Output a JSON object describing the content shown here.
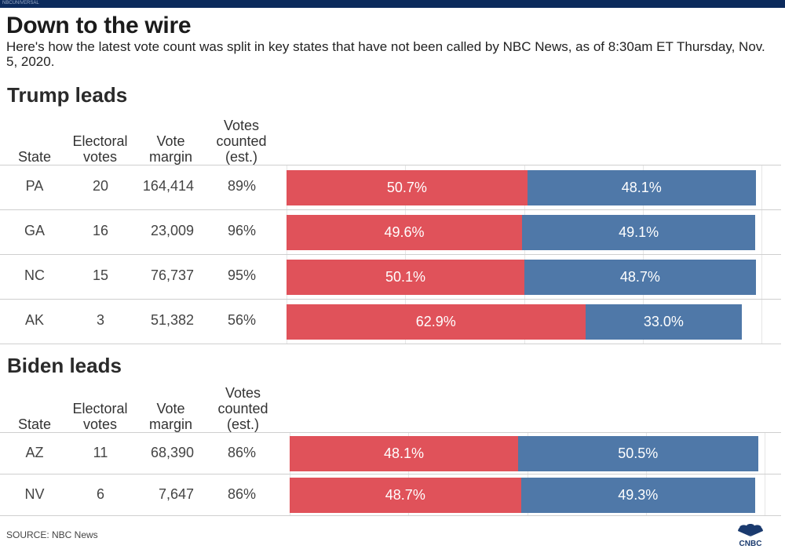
{
  "header": {
    "badge": "NBCUNIVERSAL",
    "title": "Down to the wire",
    "subtitle": "Here's how the latest vote count was split in key states that have not been called by NBC News, as of 8:30am ET Thursday, Nov. 5, 2020."
  },
  "columns": {
    "state": "State",
    "electoral_1": "Electoral",
    "electoral_2": "votes",
    "margin_1": "Vote",
    "margin_2": "margin",
    "counted_1": "Votes",
    "counted_2": "counted",
    "counted_3": "(est.)"
  },
  "colors": {
    "trump": "#e0525a",
    "biden": "#4f78a8"
  },
  "chart_data": [
    {
      "type": "bar",
      "orientation": "horizontal",
      "stacked": true,
      "title": "Trump leads",
      "xlim": [
        0,
        100
      ],
      "categories": [
        "PA",
        "GA",
        "NC",
        "AK"
      ],
      "series": [
        {
          "name": "Trump",
          "values": [
            50.7,
            49.6,
            50.1,
            62.9
          ],
          "labels": [
            "50.7%",
            "49.6%",
            "50.1%",
            "62.9%"
          ]
        },
        {
          "name": "Biden",
          "values": [
            48.1,
            49.1,
            48.7,
            33.0
          ],
          "labels": [
            "48.1%",
            "49.1%",
            "48.7%",
            "33.0%"
          ]
        }
      ],
      "rows": [
        {
          "state": "PA",
          "electoral_votes": "20",
          "vote_margin": "164,414",
          "votes_counted": "89%"
        },
        {
          "state": "GA",
          "electoral_votes": "16",
          "vote_margin": "23,009",
          "votes_counted": "96%"
        },
        {
          "state": "NC",
          "electoral_votes": "15",
          "vote_margin": "76,737",
          "votes_counted": "95%"
        },
        {
          "state": "AK",
          "electoral_votes": "3",
          "vote_margin": "51,382",
          "votes_counted": "56%"
        }
      ]
    },
    {
      "type": "bar",
      "orientation": "horizontal",
      "stacked": true,
      "title": "Biden leads",
      "xlim": [
        0,
        100
      ],
      "categories": [
        "AZ",
        "NV"
      ],
      "series": [
        {
          "name": "Trump",
          "values": [
            48.1,
            48.7
          ],
          "labels": [
            "48.1%",
            "48.7%"
          ]
        },
        {
          "name": "Biden",
          "values": [
            50.5,
            49.3
          ],
          "labels": [
            "50.5%",
            "49.3%"
          ]
        }
      ],
      "rows": [
        {
          "state": "AZ",
          "electoral_votes": "11",
          "vote_margin": "68,390",
          "votes_counted": "86%"
        },
        {
          "state": "NV",
          "electoral_votes": "6",
          "vote_margin": "7,647",
          "votes_counted": "86%"
        }
      ]
    }
  ],
  "footer": {
    "source": "SOURCE: NBC News",
    "logo_text": "CNBC"
  }
}
